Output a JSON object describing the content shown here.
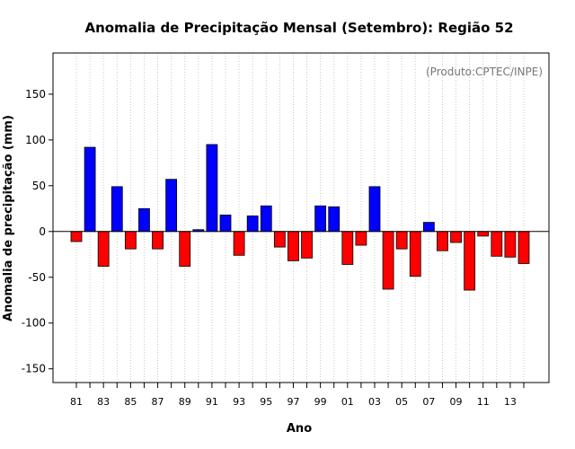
{
  "chart_data": {
    "type": "bar",
    "title": "Anomalia de Precipitação Mensal (Setembro): Região 52",
    "xlabel": "Ano",
    "ylabel": "Anomalia de precipitação (mm)",
    "credit": "(Produto:CPTEC/INPE)",
    "ylim": [
      -165,
      195
    ],
    "yticks": [
      -150,
      -100,
      -50,
      0,
      50,
      100,
      150
    ],
    "ytick_labels": [
      "-150",
      "-100",
      "-50",
      "0",
      "50",
      "100",
      "150"
    ],
    "categories": [
      "1981",
      "1982",
      "1983",
      "1984",
      "1985",
      "1986",
      "1987",
      "1988",
      "1989",
      "1990",
      "1991",
      "1992",
      "1993",
      "1994",
      "1995",
      "1996",
      "1997",
      "1998",
      "1999",
      "2000",
      "2001",
      "2002",
      "2003",
      "2004",
      "2005",
      "2006",
      "2007",
      "2008",
      "2009",
      "2010",
      "2011",
      "2012",
      "2013",
      "2014"
    ],
    "xtick_labels": [
      "81",
      "83",
      "85",
      "87",
      "89",
      "91",
      "93",
      "95",
      "97",
      "99",
      "01",
      "03",
      "05",
      "07",
      "09",
      "11",
      "13"
    ],
    "values": [
      -11,
      92,
      -38,
      49,
      -19,
      25,
      -19,
      57,
      -38,
      2,
      95,
      18,
      -26,
      17,
      28,
      -17,
      -32,
      -29,
      28,
      27,
      -36,
      -15,
      49,
      -63,
      -19,
      -49,
      10,
      -21,
      -12,
      -64,
      -5,
      -27,
      -28,
      -35
    ],
    "positive_color": "#0000ff",
    "negative_color": "#ff0000",
    "grid": "vertical dotted"
  }
}
